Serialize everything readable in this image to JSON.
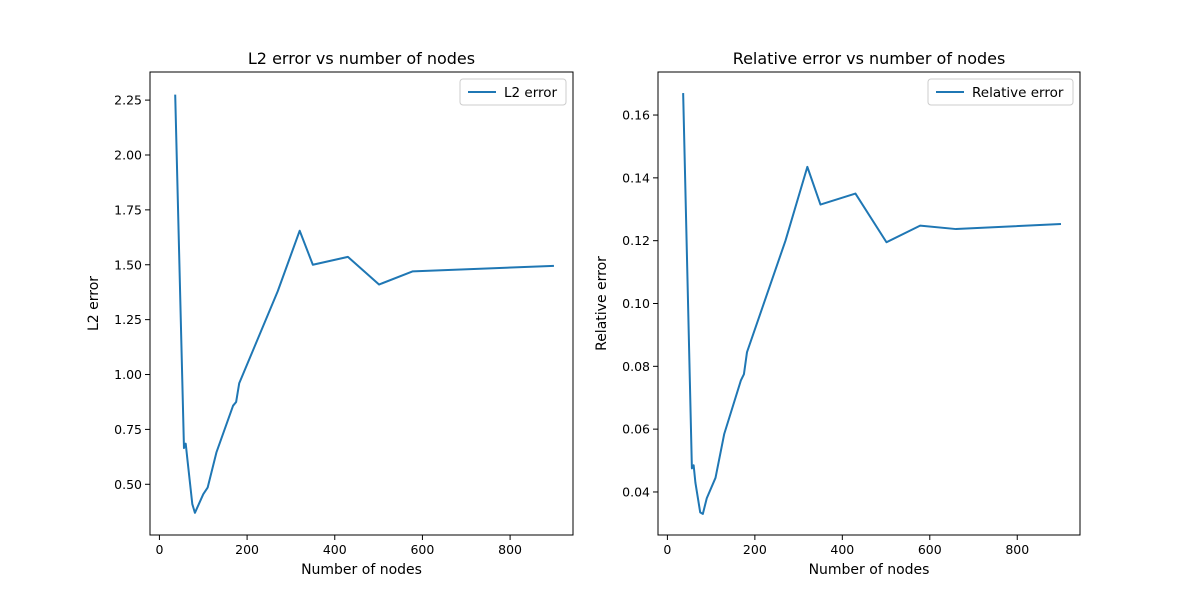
{
  "chart_data": [
    {
      "type": "line",
      "title": "L2 error vs number of nodes",
      "xlabel": "Number of nodes",
      "ylabel": "L2 error",
      "xlim": [
        -21.5,
        943.5
      ],
      "ylim": [
        0.269,
        2.378
      ],
      "xticks": [
        0,
        200,
        400,
        600,
        800
      ],
      "xtick_labels": [
        "0",
        "200",
        "400",
        "600",
        "800"
      ],
      "yticks": [
        0.5,
        0.75,
        1.0,
        1.25,
        1.5,
        1.75,
        2.0,
        2.25
      ],
      "ytick_labels": [
        "0.50",
        "0.75",
        "1.00",
        "1.25",
        "1.50",
        "1.75",
        "2.00",
        "2.25"
      ],
      "legend_position": "top-right",
      "color": "#1f77b4",
      "series": [
        {
          "name": "L2 error",
          "x": [
            36,
            56,
            60,
            64,
            75,
            81,
            100,
            110,
            130,
            168,
            175,
            182,
            270,
            320,
            350,
            430,
            501,
            578,
            900
          ],
          "y": [
            2.275,
            0.665,
            0.685,
            0.61,
            0.41,
            0.37,
            0.455,
            0.485,
            0.645,
            0.858,
            0.875,
            0.96,
            1.38,
            1.655,
            1.5,
            1.536,
            1.41,
            1.47,
            1.495
          ]
        }
      ]
    },
    {
      "type": "line",
      "title": "Relative error vs number of nodes",
      "xlabel": "Number of nodes",
      "ylabel": "Relative error",
      "xlim": [
        -21.5,
        943.5
      ],
      "ylim": [
        0.0263,
        0.1737
      ],
      "xticks": [
        0,
        200,
        400,
        600,
        800
      ],
      "xtick_labels": [
        "0",
        "200",
        "400",
        "600",
        "800"
      ],
      "yticks": [
        0.04,
        0.06,
        0.08,
        0.1,
        0.12,
        0.14,
        0.16
      ],
      "ytick_labels": [
        "0.04",
        "0.06",
        "0.08",
        "0.10",
        "0.12",
        "0.14",
        "0.16"
      ],
      "legend_position": "top-right",
      "color": "#1f77b4",
      "series": [
        {
          "name": "Relative error",
          "x": [
            36,
            56,
            60,
            64,
            75,
            81,
            90,
            110,
            130,
            168,
            175,
            182,
            270,
            320,
            350,
            430,
            501,
            578,
            660,
            900
          ],
          "y": [
            0.167,
            0.0475,
            0.0485,
            0.043,
            0.0335,
            0.033,
            0.038,
            0.0445,
            0.0585,
            0.0755,
            0.0775,
            0.0845,
            0.12,
            0.1435,
            0.1315,
            0.135,
            0.1195,
            0.1248,
            0.1237,
            0.1253
          ]
        }
      ]
    }
  ]
}
